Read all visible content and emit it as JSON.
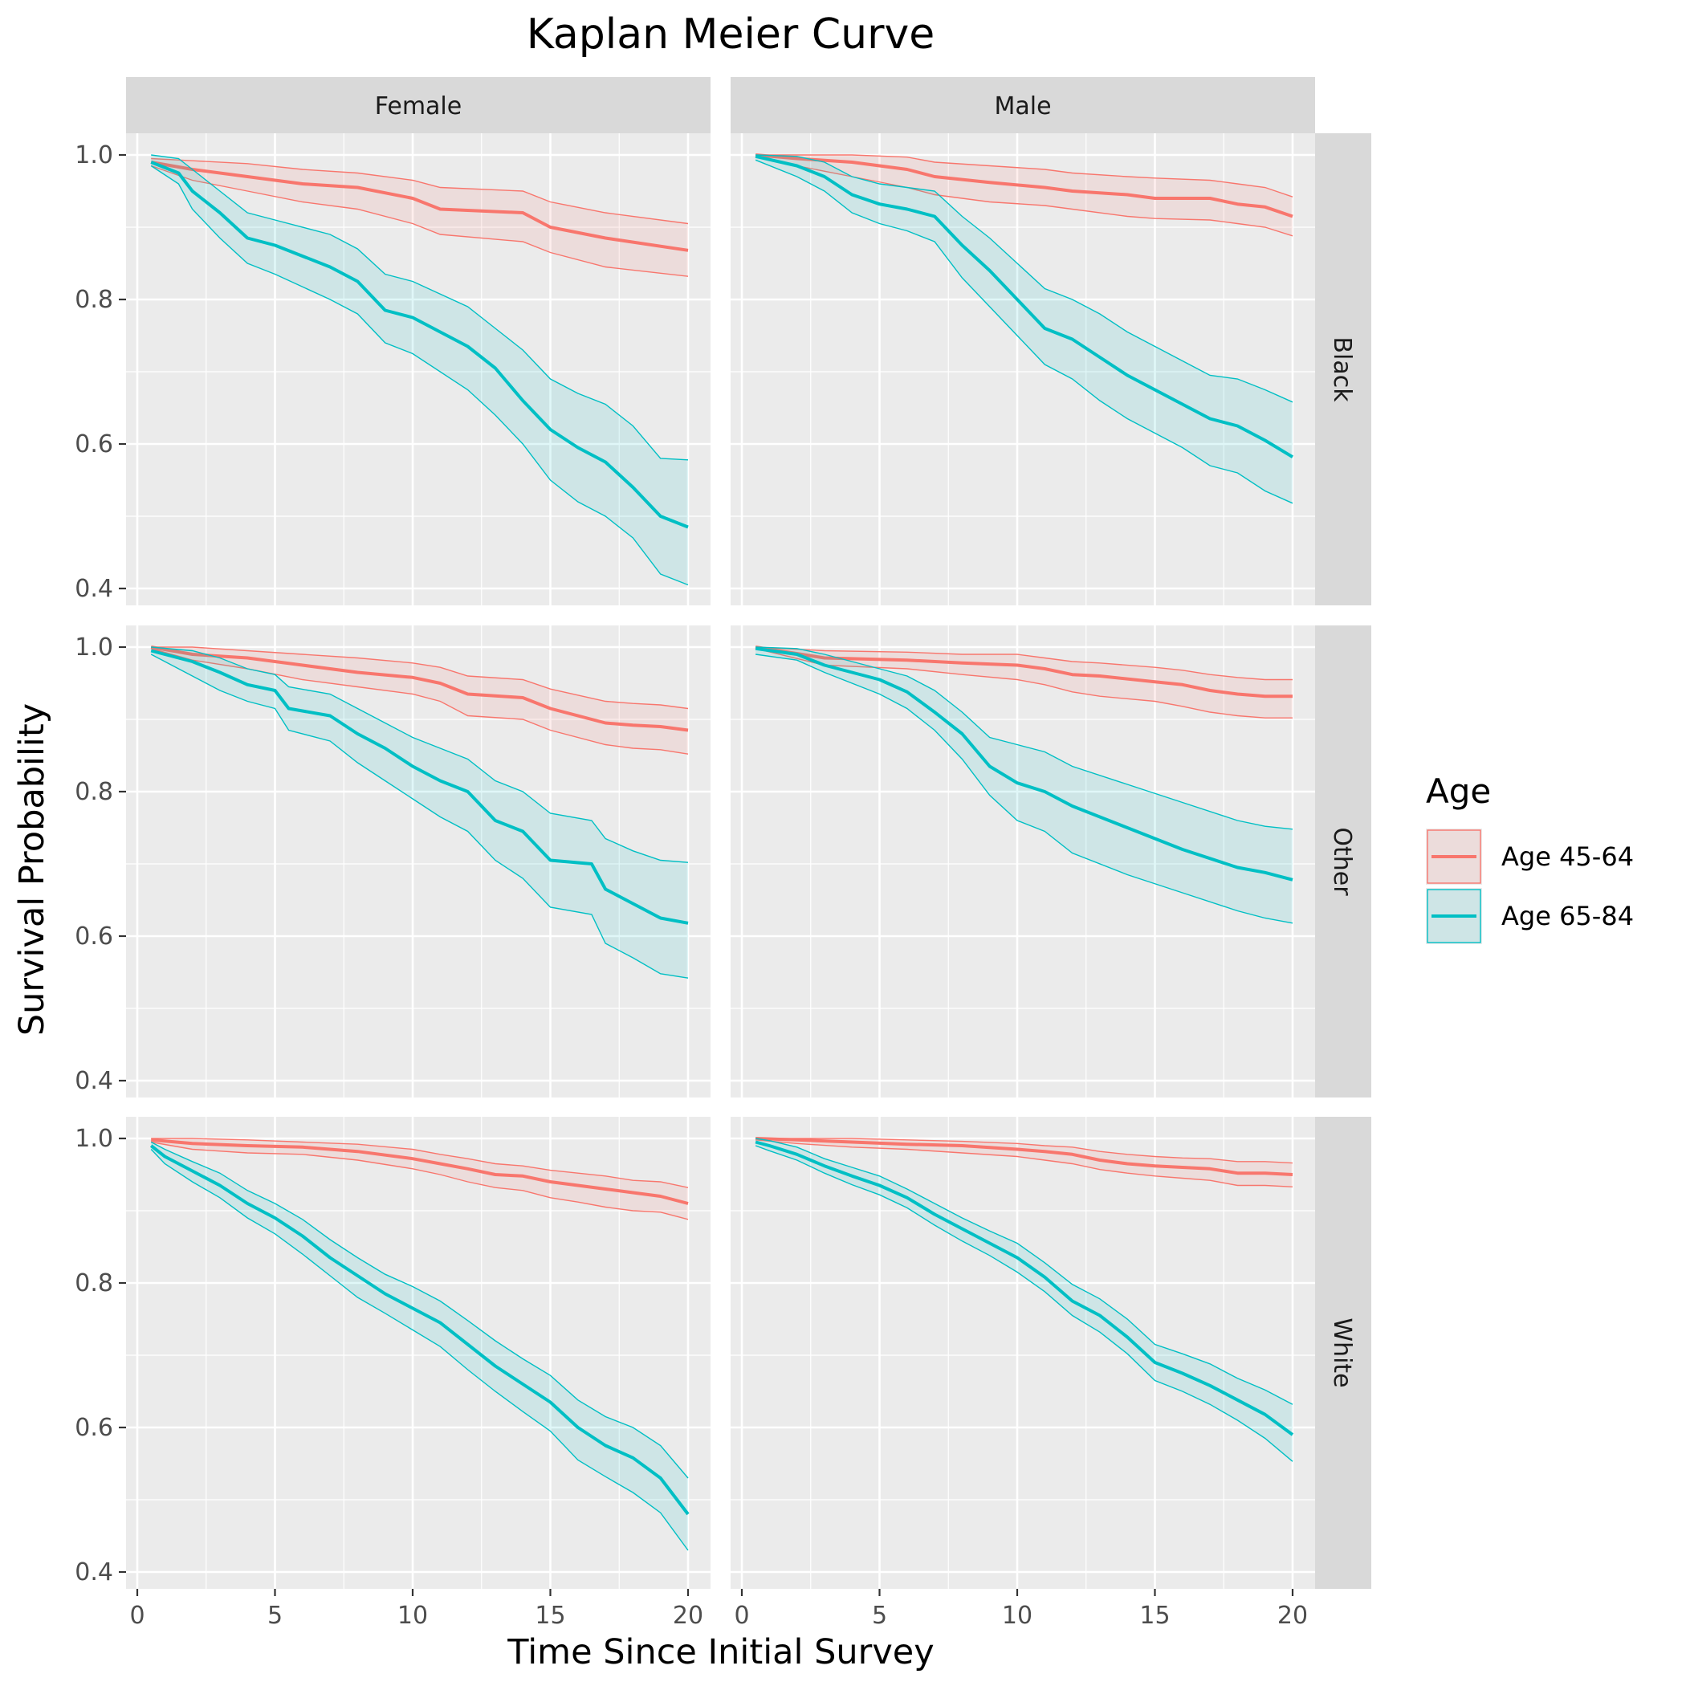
{
  "chart_data": {
    "type": "line",
    "title": "Kaplan Meier Curve",
    "xlabel": "Time Since Initial Survey",
    "ylabel": "Survival Probability",
    "xlim": [
      0,
      20
    ],
    "ylim": [
      0.4,
      1.0
    ],
    "x_ticks": [
      "0",
      "5",
      "10",
      "15",
      "20"
    ],
    "y_ticks": [
      "0.4",
      "0.6",
      "0.8",
      "1.0"
    ],
    "grid": true,
    "legend": {
      "title": "Age",
      "position": "right",
      "entries": [
        {
          "label": "Age 45-64",
          "color": "#F8766D"
        },
        {
          "label": "Age 65-84",
          "color": "#00BFC4"
        }
      ]
    },
    "facet_columns": [
      "Female",
      "Male"
    ],
    "facet_rows": [
      "Black",
      "Other",
      "White"
    ],
    "panels": [
      {
        "column": "Female",
        "row": "Black",
        "series": [
          {
            "name": "Age 45-64",
            "x": [
              0.5,
              2,
              4,
              6,
              8,
              10,
              11,
              14,
              15,
              17,
              20
            ],
            "y": [
              0.99,
              0.98,
              0.97,
              0.96,
              0.955,
              0.94,
              0.925,
              0.92,
              0.9,
              0.885,
              0.868
            ],
            "lower": [
              0.985,
              0.965,
              0.95,
              0.935,
              0.925,
              0.905,
              0.89,
              0.88,
              0.865,
              0.845,
              0.832
            ],
            "upper": [
              0.995,
              0.992,
              0.988,
              0.98,
              0.975,
              0.965,
              0.955,
              0.95,
              0.935,
              0.92,
              0.905
            ]
          },
          {
            "name": "Age 65-84",
            "x": [
              0.5,
              1.5,
              2,
              3,
              4,
              5,
              7,
              8,
              9,
              10,
              12,
              13,
              14,
              15,
              16,
              17,
              18,
              19,
              20
            ],
            "y": [
              0.99,
              0.975,
              0.95,
              0.92,
              0.885,
              0.875,
              0.845,
              0.825,
              0.785,
              0.775,
              0.735,
              0.705,
              0.66,
              0.62,
              0.595,
              0.575,
              0.54,
              0.5,
              0.485
            ],
            "lower": [
              0.985,
              0.96,
              0.925,
              0.885,
              0.85,
              0.835,
              0.8,
              0.78,
              0.74,
              0.725,
              0.675,
              0.64,
              0.6,
              0.55,
              0.52,
              0.5,
              0.47,
              0.42,
              0.405
            ],
            "upper": [
              1.0,
              0.995,
              0.98,
              0.95,
              0.92,
              0.91,
              0.89,
              0.87,
              0.835,
              0.825,
              0.79,
              0.76,
              0.73,
              0.69,
              0.67,
              0.655,
              0.625,
              0.58,
              0.578
            ]
          }
        ]
      },
      {
        "column": "Male",
        "row": "Black",
        "series": [
          {
            "name": "Age 45-64",
            "x": [
              0.5,
              2,
              4,
              6,
              7,
              9,
              11,
              12,
              14,
              15,
              17,
              18,
              19,
              20
            ],
            "y": [
              1.0,
              0.995,
              0.99,
              0.98,
              0.97,
              0.962,
              0.955,
              0.95,
              0.945,
              0.94,
              0.94,
              0.932,
              0.928,
              0.915
            ],
            "lower": [
              0.998,
              0.985,
              0.97,
              0.955,
              0.945,
              0.935,
              0.93,
              0.925,
              0.915,
              0.912,
              0.91,
              0.905,
              0.9,
              0.888
            ],
            "upper": [
              1.0,
              1.0,
              1.0,
              0.997,
              0.99,
              0.985,
              0.98,
              0.975,
              0.97,
              0.968,
              0.965,
              0.96,
              0.955,
              0.942
            ]
          },
          {
            "name": "Age 65-84",
            "x": [
              0.5,
              2,
              3,
              4,
              5,
              6,
              7,
              8,
              9,
              10,
              11,
              12,
              13,
              14,
              15,
              16,
              17,
              18,
              19,
              20
            ],
            "y": [
              0.998,
              0.985,
              0.97,
              0.945,
              0.932,
              0.925,
              0.915,
              0.875,
              0.84,
              0.8,
              0.76,
              0.745,
              0.72,
              0.695,
              0.675,
              0.655,
              0.635,
              0.625,
              0.605,
              0.582
            ],
            "lower": [
              0.993,
              0.97,
              0.95,
              0.92,
              0.905,
              0.895,
              0.88,
              0.83,
              0.79,
              0.75,
              0.71,
              0.69,
              0.66,
              0.635,
              0.615,
              0.595,
              0.57,
              0.56,
              0.535,
              0.518
            ],
            "upper": [
              1.0,
              0.998,
              0.99,
              0.97,
              0.96,
              0.955,
              0.95,
              0.915,
              0.885,
              0.85,
              0.815,
              0.8,
              0.78,
              0.755,
              0.735,
              0.715,
              0.695,
              0.69,
              0.675,
              0.658
            ]
          }
        ]
      },
      {
        "column": "Female",
        "row": "Other",
        "series": [
          {
            "name": "Age 45-64",
            "x": [
              0.5,
              2,
              4,
              6,
              8,
              10,
              11,
              12,
              14,
              15,
              17,
              18,
              19,
              20
            ],
            "y": [
              1.0,
              0.99,
              0.985,
              0.975,
              0.965,
              0.958,
              0.95,
              0.935,
              0.93,
              0.915,
              0.895,
              0.892,
              0.89,
              0.885
            ],
            "lower": [
              0.998,
              0.982,
              0.97,
              0.955,
              0.945,
              0.935,
              0.925,
              0.905,
              0.9,
              0.885,
              0.865,
              0.86,
              0.858,
              0.852
            ],
            "upper": [
              1.0,
              1.0,
              0.995,
              0.99,
              0.985,
              0.978,
              0.972,
              0.96,
              0.955,
              0.942,
              0.925,
              0.922,
              0.92,
              0.915
            ]
          },
          {
            "name": "Age 65-84",
            "x": [
              0.5,
              2,
              3,
              4,
              5,
              5.5,
              7,
              8,
              9,
              10,
              11,
              12,
              13,
              14,
              15,
              16.5,
              17,
              18,
              19,
              20
            ],
            "y": [
              0.995,
              0.98,
              0.965,
              0.948,
              0.94,
              0.915,
              0.905,
              0.88,
              0.86,
              0.835,
              0.815,
              0.8,
              0.76,
              0.745,
              0.705,
              0.7,
              0.665,
              0.645,
              0.625,
              0.618
            ],
            "lower": [
              0.99,
              0.96,
              0.94,
              0.925,
              0.915,
              0.885,
              0.87,
              0.84,
              0.815,
              0.79,
              0.765,
              0.745,
              0.705,
              0.68,
              0.64,
              0.63,
              0.59,
              0.57,
              0.548,
              0.542
            ],
            "upper": [
              1.0,
              0.995,
              0.985,
              0.97,
              0.962,
              0.945,
              0.935,
              0.915,
              0.895,
              0.875,
              0.86,
              0.845,
              0.815,
              0.8,
              0.77,
              0.76,
              0.735,
              0.718,
              0.705,
              0.702
            ]
          }
        ]
      },
      {
        "column": "Male",
        "row": "Other",
        "series": [
          {
            "name": "Age 45-64",
            "x": [
              0.5,
              3,
              6,
              8,
              10,
              11,
              12,
              13,
              15,
              16,
              17,
              18,
              19,
              20
            ],
            "y": [
              1.0,
              0.985,
              0.982,
              0.978,
              0.975,
              0.97,
              0.962,
              0.96,
              0.952,
              0.948,
              0.94,
              0.935,
              0.932,
              0.932
            ],
            "lower": [
              0.998,
              0.975,
              0.97,
              0.962,
              0.955,
              0.948,
              0.938,
              0.932,
              0.925,
              0.918,
              0.91,
              0.905,
              0.902,
              0.902
            ],
            "upper": [
              1.0,
              0.995,
              0.993,
              0.99,
              0.99,
              0.985,
              0.98,
              0.978,
              0.972,
              0.968,
              0.962,
              0.958,
              0.955,
              0.955
            ]
          },
          {
            "name": "Age 65-84",
            "x": [
              0.5,
              2,
              3,
              5,
              6,
              7,
              8,
              9,
              10,
              11,
              12,
              14,
              16,
              18,
              19,
              20
            ],
            "y": [
              0.998,
              0.99,
              0.975,
              0.955,
              0.938,
              0.91,
              0.88,
              0.835,
              0.812,
              0.8,
              0.78,
              0.75,
              0.72,
              0.695,
              0.688,
              0.678
            ],
            "lower": [
              0.99,
              0.982,
              0.965,
              0.935,
              0.915,
              0.885,
              0.845,
              0.795,
              0.76,
              0.745,
              0.715,
              0.685,
              0.66,
              0.635,
              0.625,
              0.618
            ],
            "upper": [
              1.0,
              0.998,
              0.99,
              0.97,
              0.96,
              0.94,
              0.91,
              0.875,
              0.865,
              0.855,
              0.835,
              0.81,
              0.785,
              0.76,
              0.752,
              0.748
            ]
          }
        ]
      },
      {
        "column": "Female",
        "row": "White",
        "series": [
          {
            "name": "Age 45-64",
            "x": [
              0.5,
              2,
              4,
              6,
              8,
              10,
              11,
              12,
              13,
              14,
              15,
              16,
              17,
              18,
              19,
              20
            ],
            "y": [
              0.998,
              0.993,
              0.99,
              0.988,
              0.982,
              0.972,
              0.965,
              0.958,
              0.95,
              0.948,
              0.94,
              0.935,
              0.93,
              0.925,
              0.92,
              0.91
            ],
            "lower": [
              0.995,
              0.985,
              0.98,
              0.978,
              0.97,
              0.958,
              0.95,
              0.94,
              0.932,
              0.928,
              0.918,
              0.912,
              0.905,
              0.9,
              0.898,
              0.888
            ],
            "upper": [
              1.0,
              1.0,
              0.998,
              0.995,
              0.992,
              0.985,
              0.978,
              0.972,
              0.965,
              0.962,
              0.956,
              0.952,
              0.948,
              0.942,
              0.94,
              0.932
            ],
            "note_x": []
          },
          {
            "name": "Age 65-84",
            "x": [
              0.5,
              1,
              2,
              3,
              4,
              5,
              6,
              7,
              8,
              9,
              10,
              11,
              12,
              13,
              14,
              15,
              16,
              17,
              18,
              19,
              20
            ],
            "y": [
              0.99,
              0.975,
              0.955,
              0.935,
              0.91,
              0.89,
              0.865,
              0.835,
              0.81,
              0.785,
              0.765,
              0.745,
              0.715,
              0.685,
              0.66,
              0.635,
              0.6,
              0.575,
              0.558,
              0.53,
              0.48
            ],
            "lower": [
              0.985,
              0.965,
              0.94,
              0.918,
              0.89,
              0.868,
              0.84,
              0.81,
              0.78,
              0.758,
              0.735,
              0.712,
              0.68,
              0.65,
              0.622,
              0.595,
              0.555,
              0.532,
              0.51,
              0.482,
              0.43
            ],
            "upper": [
              0.995,
              0.985,
              0.968,
              0.952,
              0.928,
              0.91,
              0.888,
              0.86,
              0.835,
              0.812,
              0.795,
              0.775,
              0.748,
              0.72,
              0.695,
              0.672,
              0.638,
              0.615,
              0.6,
              0.575,
              0.53
            ]
          }
        ]
      },
      {
        "column": "Male",
        "row": "White",
        "series": [
          {
            "name": "Age 45-64",
            "x": [
              0.5,
              2,
              4,
              6,
              8,
              10,
              11,
              12,
              13,
              14,
              15,
              16,
              17,
              18,
              19,
              20
            ],
            "y": [
              1.0,
              0.998,
              0.995,
              0.992,
              0.99,
              0.985,
              0.982,
              0.978,
              0.97,
              0.965,
              0.962,
              0.96,
              0.958,
              0.952,
              0.952,
              0.95
            ],
            "lower": [
              0.998,
              0.993,
              0.988,
              0.985,
              0.98,
              0.975,
              0.97,
              0.965,
              0.957,
              0.952,
              0.948,
              0.945,
              0.942,
              0.935,
              0.935,
              0.933
            ],
            "upper": [
              1.0,
              1.0,
              1.0,
              0.998,
              0.996,
              0.993,
              0.99,
              0.988,
              0.982,
              0.978,
              0.975,
              0.973,
              0.972,
              0.968,
              0.968,
              0.966
            ]
          },
          {
            "name": "Age 65-84",
            "x": [
              0.5,
              1,
              2,
              3,
              4,
              5,
              6,
              7,
              8,
              9,
              10,
              11,
              12,
              13,
              14,
              15,
              16,
              17,
              18,
              19,
              20
            ],
            "y": [
              0.995,
              0.99,
              0.978,
              0.962,
              0.948,
              0.935,
              0.918,
              0.895,
              0.875,
              0.855,
              0.835,
              0.808,
              0.775,
              0.755,
              0.725,
              0.69,
              0.675,
              0.658,
              0.638,
              0.618,
              0.59
            ],
            "lower": [
              0.99,
              0.983,
              0.97,
              0.952,
              0.936,
              0.922,
              0.904,
              0.88,
              0.858,
              0.838,
              0.815,
              0.788,
              0.755,
              0.732,
              0.702,
              0.665,
              0.65,
              0.632,
              0.61,
              0.585,
              0.553
            ],
            "upper": [
              1.0,
              0.997,
              0.988,
              0.972,
              0.96,
              0.948,
              0.93,
              0.91,
              0.89,
              0.872,
              0.855,
              0.828,
              0.798,
              0.778,
              0.75,
              0.715,
              0.702,
              0.688,
              0.668,
              0.652,
              0.632
            ]
          }
        ]
      }
    ]
  }
}
